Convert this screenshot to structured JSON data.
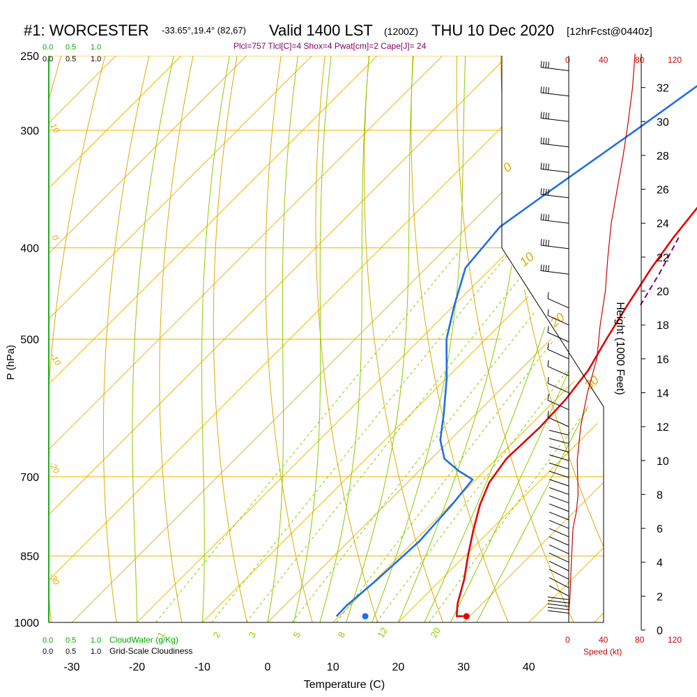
{
  "header": {
    "station": "#1: WORCESTER",
    "coords": "-33.65°,19.4° (82,67)",
    "valid": "Valid 1400 LST",
    "utc": "(1200Z)",
    "date": "THU 10 Dec 2020",
    "forecast": "[12hrFcst@0440z]",
    "indices": "Plcl=757 Tlcl[C]=4 Shox=4 Pwat[cm]=2 Cape[J]= 24"
  },
  "scales": {
    "cloud_water_top": [
      "0.0",
      "0.5",
      "1.0"
    ],
    "cloudiness_top": [
      "0.0",
      "0.5",
      "1.0"
    ],
    "cloud_water_bottom": [
      "0.0",
      "0.5",
      "1.0"
    ],
    "cloud_water_label": "CloudWater (g/Kg)",
    "cloudiness_bottom": [
      "0.0",
      "0.5",
      "1.0"
    ],
    "cloudiness_label": "Grid-Scale Cloudiness",
    "speed_top": [
      "0",
      "40",
      "80",
      "120"
    ],
    "speed_bottom": [
      "0",
      "40",
      "80",
      "120"
    ],
    "speed_label": "Speed (kt)"
  },
  "colors": {
    "isobar": "#f0b400",
    "dry_adiabat": "#e0a800",
    "moist_adiabat": "#88cc00",
    "mixing_ratio": "#88cc00",
    "temperature": "#e00000",
    "dewpoint": "#1e6ee8",
    "parcel": "#800060",
    "cloud": "#00aa00",
    "speed": "#cc0000",
    "wind_barb": "#000000"
  },
  "chart_data": {
    "type": "line",
    "title": "#1: WORCESTER",
    "xlabel": "Temperature (C)",
    "ylabel": "P (hPa)",
    "y2label": "Height (1000 Feet)",
    "y_scale": "log",
    "xlim": [
      -33,
      46
    ],
    "ylim": [
      1000,
      250
    ],
    "x_ticks": [
      "-30",
      "-20",
      "-10",
      "0",
      "10",
      "20",
      "30",
      "40"
    ],
    "y_ticks": [
      {
        "p": 250,
        "label": "250"
      },
      {
        "p": 300,
        "label": "300"
      },
      {
        "p": 400,
        "label": "400"
      },
      {
        "p": 500,
        "label": "500"
      },
      {
        "p": 700,
        "label": "700"
      },
      {
        "p": 850,
        "label": "850"
      },
      {
        "p": 1000,
        "label": "1000"
      }
    ],
    "height_ticks": [
      "0",
      "2",
      "4",
      "6",
      "8",
      "10",
      "12",
      "14",
      "16",
      "18",
      "20",
      "22",
      "24",
      "26",
      "28",
      "30",
      "32"
    ],
    "dry_adiabat_labels": [
      "10",
      "0",
      "-10",
      "-20",
      "-30",
      "0",
      "10",
      "20",
      "30"
    ],
    "mixing_ratio_labels": [
      "1",
      "2",
      "3",
      "5",
      "8",
      "12",
      "20"
    ],
    "series": [
      {
        "key": "temperature",
        "points": [
          [
            -0.5,
            265
          ],
          [
            0.5,
            300
          ],
          [
            1.5,
            330
          ],
          [
            2.2,
            360
          ],
          [
            3.2,
            390
          ],
          [
            4.5,
            420
          ],
          [
            6.5,
            460
          ],
          [
            8.5,
            500
          ],
          [
            10.5,
            540
          ],
          [
            11.5,
            580
          ],
          [
            11.8,
            620
          ],
          [
            11.5,
            670
          ],
          [
            12.5,
            710
          ],
          [
            14.5,
            750
          ],
          [
            17.5,
            800
          ],
          [
            20.5,
            850
          ],
          [
            23.5,
            900
          ],
          [
            26.2,
            955
          ],
          [
            28,
            985
          ],
          [
            29,
            985
          ]
        ]
      },
      {
        "key": "dewpoint",
        "points": [
          [
            -16,
            265
          ],
          [
            -19,
            300
          ],
          [
            -23,
            350
          ],
          [
            -25,
            380
          ],
          [
            -24,
            420
          ],
          [
            -20,
            460
          ],
          [
            -16,
            500
          ],
          [
            -10,
            550
          ],
          [
            -5,
            600
          ],
          [
            -1.5,
            640
          ],
          [
            2,
            670
          ],
          [
            6,
            690
          ],
          [
            9.5,
            705
          ],
          [
            10.2,
            750
          ],
          [
            10.8,
            820
          ],
          [
            10.2,
            900
          ],
          [
            9.5,
            960
          ],
          [
            9.6,
            985
          ]
        ]
      },
      {
        "key": "parcel",
        "points": [
          [
            4,
            390
          ],
          [
            6.5,
            425
          ],
          [
            8.5,
            460
          ]
        ]
      }
    ],
    "surface": {
      "temperature": 29.5,
      "dewpoint": 14
    },
    "height_profile_ft": [
      [
        1000,
        0
      ],
      [
        2000,
        1.5
      ],
      [
        4000,
        3
      ],
      [
        6000,
        5
      ],
      [
        7000,
        9
      ],
      [
        8000,
        11
      ],
      [
        10000,
        10
      ],
      [
        12000,
        14
      ],
      [
        14000,
        22
      ],
      [
        16000,
        33
      ],
      [
        18000,
        37
      ],
      [
        20000,
        43
      ],
      [
        22000,
        46
      ],
      [
        24000,
        50
      ],
      [
        26000,
        57
      ],
      [
        28000,
        64
      ],
      [
        30000,
        70
      ],
      [
        32000,
        75
      ],
      [
        34000,
        78
      ]
    ]
  }
}
